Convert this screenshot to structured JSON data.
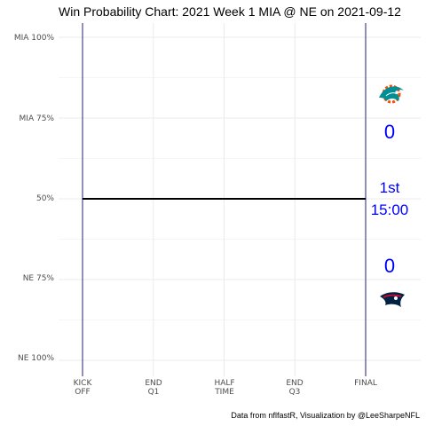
{
  "chart_data": {
    "type": "line",
    "title": "Win Probability Chart: 2021 Week 1 MIA @ NE on 2021-09-12",
    "y_ticks": [
      "MIA 100%",
      "MIA 75%",
      "50%",
      "NE 75%",
      "NE 100%"
    ],
    "x_ticks": [
      {
        "line1": "KICK",
        "line2": "OFF"
      },
      {
        "line1": "END",
        "line2": "Q1"
      },
      {
        "line1": "HALF",
        "line2": "TIME"
      },
      {
        "line1": "END",
        "line2": "Q3"
      },
      {
        "line1": "FINAL",
        "line2": ""
      }
    ],
    "series": [
      {
        "x": [
          0,
          100
        ],
        "y": [
          0.5,
          0.5
        ]
      }
    ],
    "xlim": [
      0,
      100
    ],
    "ylim": [
      0,
      1
    ],
    "grid": true,
    "away_team": {
      "abbr": "MIA",
      "score": "0",
      "logo": "dolphin-logo-icon",
      "color": "#008E97",
      "accent": "#FC4C02"
    },
    "home_team": {
      "abbr": "NE",
      "score": "0",
      "logo": "patriot-logo-icon",
      "color": "#002244",
      "accent": "#C60C30"
    },
    "game_clock": {
      "quarter": "1st",
      "time": "15:00"
    },
    "caption": "Data from nflfastR, Visualization by @LeeSharpeNFL",
    "colors": {
      "wp_line": "#000000",
      "vertical_lines": "#1f1f7a",
      "score_text": "#0000ff",
      "grid": "#ebebeb"
    }
  }
}
